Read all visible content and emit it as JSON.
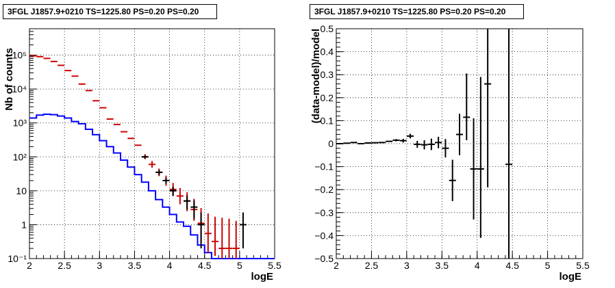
{
  "chart_data": [
    {
      "type": "line",
      "title": "3FGL J1857.9+0210 TS=1225.80 PS=0.20 PS=0.20",
      "xlabel": "logE",
      "ylabel": "Nb of counts",
      "xlim": [
        2,
        5.5
      ],
      "ylim": [
        0.1,
        600000
      ],
      "yscale": "log",
      "grid": true,
      "x_ticks": [
        "2",
        "2.5",
        "3",
        "3.5",
        "4",
        "4.5",
        "5",
        "5.5"
      ],
      "y_ticks": [
        {
          "value": 0.1,
          "label": "10⁻¹"
        },
        {
          "value": 1,
          "label": "1"
        },
        {
          "value": 10,
          "label": "10"
        },
        {
          "value": 100,
          "label": "10²"
        },
        {
          "value": 1000,
          "label": "10³"
        },
        {
          "value": 10000,
          "label": "10⁴"
        },
        {
          "value": 100000,
          "label": "10⁵"
        }
      ],
      "bin_edges": [
        2.0,
        2.1,
        2.2,
        2.3,
        2.4,
        2.5,
        2.6,
        2.7,
        2.8,
        2.9,
        3.0,
        3.1,
        3.2,
        3.3,
        3.4,
        3.5,
        3.6,
        3.7,
        3.8,
        3.9,
        4.0,
        4.1,
        4.2,
        4.3,
        4.4,
        4.5,
        4.6,
        4.7,
        4.8,
        4.9,
        5.0,
        5.1,
        5.2,
        5.3,
        5.4,
        5.5
      ],
      "series": [
        {
          "kind": "histogram",
          "color": "#0000ff",
          "values": [
            1400,
            1700,
            1800,
            1750,
            1600,
            1400,
            1100,
            950,
            650,
            450,
            300,
            200,
            130,
            80,
            50,
            30,
            18,
            10,
            5.5,
            3.3,
            2.0,
            1.2,
            0.9,
            0.5,
            0.25,
            0.15,
            0.1,
            0.1,
            0.1,
            0.1,
            0.1,
            0.1,
            0.1,
            0.1,
            0.1
          ]
        },
        {
          "kind": "points",
          "color": "#cc0000",
          "x": [
            2.05,
            2.15,
            2.25,
            2.35,
            2.45,
            2.55,
            2.65,
            2.75,
            2.85,
            2.95,
            3.05,
            3.15,
            3.25,
            3.35,
            3.45,
            3.55,
            3.65,
            3.75,
            3.85,
            3.95,
            4.05,
            4.15,
            4.25,
            4.35,
            4.45,
            4.55,
            4.65,
            4.75,
            4.85,
            4.95
          ],
          "y": [
            95000,
            90000,
            80000,
            65000,
            50000,
            35000,
            24000,
            14000,
            9000,
            4500,
            2800,
            1300,
            900,
            550,
            350,
            220,
            100,
            60,
            35,
            20,
            11,
            7.0,
            5.0,
            2.8,
            1.1,
            0.55,
            0.32,
            0.2,
            0.2,
            0.2
          ],
          "yerr_lo": [
            0,
            0,
            0,
            0,
            0,
            0,
            0,
            0,
            0,
            0,
            0,
            0,
            0,
            0,
            0,
            0,
            15,
            12,
            8,
            6,
            4,
            3,
            2.5,
            1.5,
            0.8,
            0.4,
            0.2,
            0.1,
            0.1,
            0.1
          ],
          "yerr_hi": [
            0,
            0,
            0,
            0,
            0,
            0,
            0,
            0,
            0,
            0,
            0,
            0,
            0,
            0,
            0,
            0,
            20,
            15,
            10,
            8,
            6,
            5,
            4,
            3,
            2.0,
            1.6,
            1.4,
            1.4,
            1.3,
            1.1
          ]
        },
        {
          "kind": "points",
          "color": "#000000",
          "x": [
            3.65,
            3.85,
            3.95,
            4.05,
            4.25,
            4.35,
            4.45,
            5.05
          ],
          "y": [
            100,
            35,
            20,
            10,
            5.0,
            3.3,
            1.0,
            1.0
          ],
          "yerr_lo": [
            10,
            6,
            4,
            3,
            2.2,
            1.8,
            0.8,
            0.8
          ],
          "yerr_hi": [
            10,
            6,
            4.5,
            3.2,
            2.2,
            1.9,
            1.3,
            1.3
          ]
        }
      ]
    },
    {
      "type": "scatter",
      "title": "3FGL J1857.9+0210 TS=1225.80 PS=0.20 PS=0.20",
      "xlabel": "logE",
      "ylabel": "(data-model)/model",
      "xlim": [
        2,
        5.5
      ],
      "ylim": [
        -0.5,
        0.5
      ],
      "grid": true,
      "x_ticks": [
        "2",
        "2.5",
        "3",
        "3.5",
        "4",
        "4.5",
        "5",
        "5.5"
      ],
      "y_ticks": [
        "−0.5",
        "−0.4",
        "−0.3",
        "−0.2",
        "−0.1",
        "0",
        "0.1",
        "0.2",
        "0.3",
        "0.4",
        "0.5"
      ],
      "series": [
        {
          "color": "#000000",
          "x": [
            2.05,
            2.15,
            2.25,
            2.35,
            2.45,
            2.55,
            2.65,
            2.75,
            2.85,
            2.95,
            3.05,
            3.15,
            3.25,
            3.35,
            3.45,
            3.55,
            3.65,
            3.75,
            3.85,
            3.95,
            4.05,
            4.15,
            4.45
          ],
          "y": [
            0.0,
            0.002,
            0.005,
            0.0,
            0.003,
            0.004,
            0.005,
            0.01,
            0.015,
            0.013,
            0.033,
            -0.003,
            -0.005,
            -0.003,
            0.005,
            -0.02,
            -0.16,
            0.04,
            0.115,
            -0.11,
            -0.11,
            0.26,
            -0.09
          ],
          "yerr_lo": [
            0,
            0,
            0,
            0,
            0,
            0,
            0,
            0,
            0.005,
            0.008,
            0.01,
            0.015,
            0.02,
            0.025,
            0.025,
            0.04,
            0.09,
            0.09,
            0.1,
            0.22,
            0.3,
            0.45,
            0.45
          ],
          "yerr_hi": [
            0,
            0,
            0,
            0,
            0,
            0,
            0,
            0,
            0.005,
            0.008,
            0.01,
            0.015,
            0.02,
            0.025,
            0.025,
            0.04,
            0.09,
            0.09,
            0.19,
            0.22,
            0.4,
            0.24,
            0.6
          ]
        }
      ]
    }
  ]
}
